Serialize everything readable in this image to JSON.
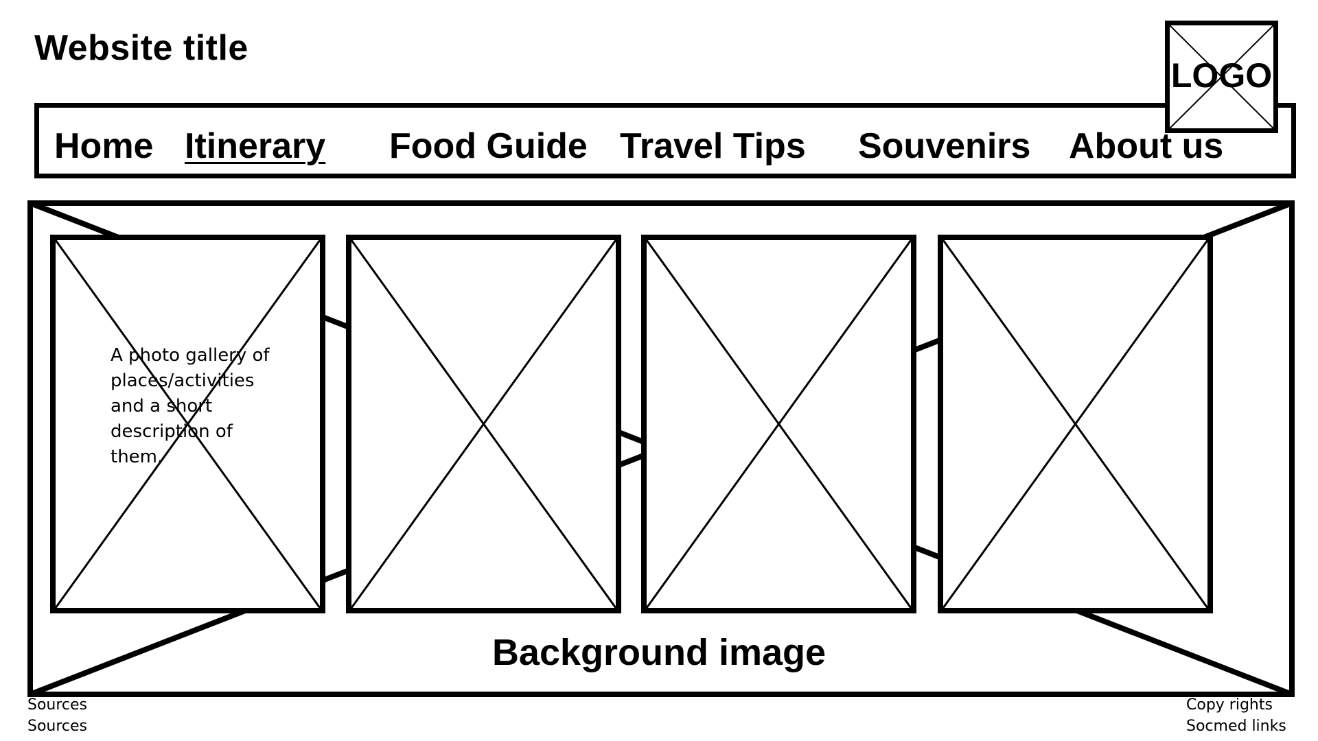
{
  "header": {
    "site_title": "Website title",
    "logo_label": "LOGO"
  },
  "nav": {
    "items": [
      {
        "label": "Home",
        "active": false
      },
      {
        "label": "Itinerary",
        "active": true
      },
      {
        "label": "Food Guide",
        "active": false
      },
      {
        "label": "Travel Tips",
        "active": false
      },
      {
        "label": "Souvenirs",
        "active": false
      },
      {
        "label": "About us",
        "active": false
      }
    ]
  },
  "gallery": {
    "description": "A photo gallery of places/activities and a short description of them.",
    "background_label": "Background image",
    "photo_count": 4
  },
  "footer": {
    "left": [
      "Sources",
      "Sources"
    ],
    "right": [
      "Copy rights",
      "Socmed links"
    ]
  }
}
